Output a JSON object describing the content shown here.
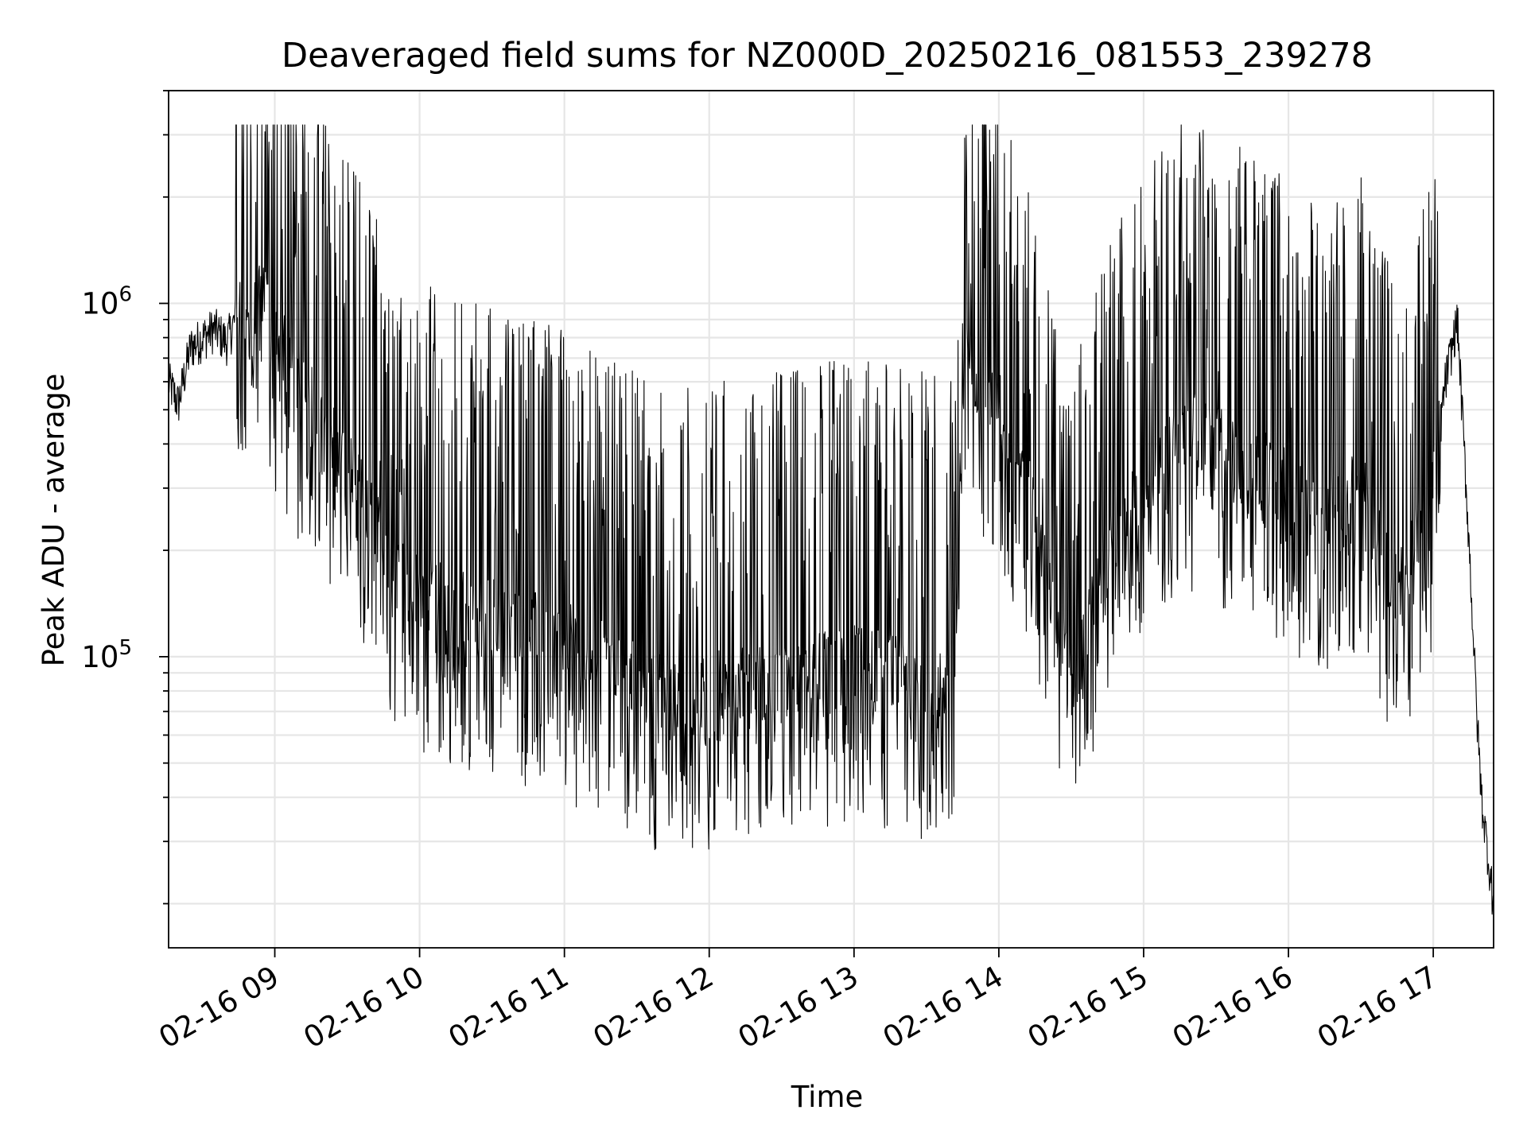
{
  "chart_data": {
    "type": "line",
    "title": "Deaveraged field sums for NZ000D_20250216_081553_239278",
    "xlabel": "Time",
    "ylabel": "Peak ADU - average",
    "yscale": "log",
    "ylim": [
      15000,
      4000000
    ],
    "xlim": [
      "2025-02-16 08:16",
      "2025-02-16 17:25"
    ],
    "x_ticks": [
      "02-16 09",
      "02-16 10",
      "02-16 11",
      "02-16 12",
      "02-16 13",
      "02-16 14",
      "02-16 15",
      "02-16 16",
      "02-16 17"
    ],
    "y_ticks": [
      {
        "value": 100000,
        "base": "10",
        "exp": "5"
      },
      {
        "value": 1000000,
        "base": "10",
        "exp": "6"
      }
    ],
    "grid": true,
    "line_color": "#000000",
    "series": [
      {
        "points": [
          [
            "2025-02-16 08:16",
            600000
          ],
          [
            "2025-02-16 08:20",
            520000
          ],
          [
            "2025-02-16 08:25",
            750000
          ],
          [
            "2025-02-16 08:30",
            800000
          ],
          [
            "2025-02-16 08:35",
            850000
          ],
          [
            "2025-02-16 08:40",
            780000
          ],
          [
            "2025-02-16 08:45",
            950000
          ],
          [
            "2025-02-16 08:50",
            1000000
          ],
          [
            "2025-02-16 08:55",
            1100000
          ],
          [
            "2025-02-16 09:00",
            800000
          ],
          [
            "2025-02-16 09:10",
            600000
          ],
          [
            "2025-02-16 09:20",
            450000
          ],
          [
            "2025-02-16 09:30",
            350000
          ],
          [
            "2025-02-16 09:40",
            250000
          ],
          [
            "2025-02-16 09:50",
            180000
          ],
          [
            "2025-02-16 10:00",
            150000
          ],
          [
            "2025-02-16 10:15",
            140000
          ],
          [
            "2025-02-16 10:30",
            130000
          ],
          [
            "2025-02-16 10:45",
            120000
          ],
          [
            "2025-02-16 11:00",
            110000
          ],
          [
            "2025-02-16 11:15",
            100000
          ],
          [
            "2025-02-16 11:30",
            85000
          ],
          [
            "2025-02-16 11:45",
            75000
          ],
          [
            "2025-02-16 12:00",
            80000
          ],
          [
            "2025-02-16 12:15",
            82000
          ],
          [
            "2025-02-16 12:30",
            85000
          ],
          [
            "2025-02-16 12:45",
            90000
          ],
          [
            "2025-02-16 13:00",
            95000
          ],
          [
            "2025-02-16 13:15",
            90000
          ],
          [
            "2025-02-16 13:30",
            85000
          ],
          [
            "2025-02-16 13:42",
            80000
          ],
          [
            "2025-02-16 13:45",
            700000
          ],
          [
            "2025-02-16 14:00",
            500000
          ],
          [
            "2025-02-16 14:15",
            250000
          ],
          [
            "2025-02-16 14:30",
            80000
          ],
          [
            "2025-02-16 14:45",
            200000
          ],
          [
            "2025-02-16 15:00",
            300000
          ],
          [
            "2025-02-16 15:15",
            450000
          ],
          [
            "2025-02-16 15:30",
            400000
          ],
          [
            "2025-02-16 15:45",
            350000
          ],
          [
            "2025-02-16 16:00",
            300000
          ],
          [
            "2025-02-16 16:15",
            250000
          ],
          [
            "2025-02-16 16:30",
            300000
          ],
          [
            "2025-02-16 16:45",
            150000
          ],
          [
            "2025-02-16 17:00",
            300000
          ],
          [
            "2025-02-16 17:05",
            600000
          ],
          [
            "2025-02-16 17:10",
            900000
          ],
          [
            "2025-02-16 17:15",
            200000
          ],
          [
            "2025-02-16 17:18",
            70000
          ],
          [
            "2025-02-16 17:20",
            40000
          ],
          [
            "2025-02-16 17:25",
            20000
          ]
        ]
      }
    ]
  }
}
